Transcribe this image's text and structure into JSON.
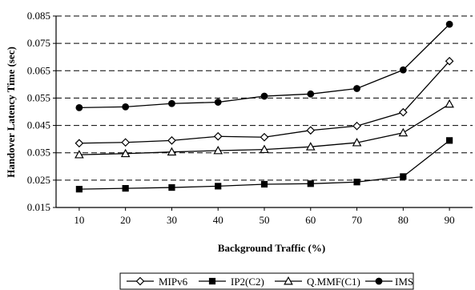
{
  "chart_data": {
    "type": "line",
    "xlabel": "Background Traffic (%)",
    "ylabel": "Handover Latency Time (sec)",
    "x": [
      10,
      20,
      30,
      40,
      50,
      60,
      70,
      80,
      90
    ],
    "xticks": [
      "10",
      "20",
      "30",
      "40",
      "50",
      "60",
      "70",
      "80",
      "90"
    ],
    "ylim": [
      0.015,
      0.085
    ],
    "yticks": [
      "0.015",
      "0.025",
      "0.035",
      "0.045",
      "0.055",
      "0.065",
      "0.075",
      "0.085"
    ],
    "grid": "horizontal dashed",
    "legend_placement": "bottom",
    "series": [
      {
        "name": "MIPv6",
        "marker": "diamond-open",
        "color": "#000000",
        "values": [
          0.0385,
          0.0388,
          0.0395,
          0.041,
          0.0407,
          0.0432,
          0.0448,
          0.0498,
          0.0685
        ]
      },
      {
        "name": "IP2(C2)",
        "marker": "square-filled",
        "color": "#000000",
        "values": [
          0.0217,
          0.022,
          0.0223,
          0.0228,
          0.0235,
          0.0237,
          0.0243,
          0.0263,
          0.0395
        ]
      },
      {
        "name": "Q.MMF(C1)",
        "marker": "triangle-open",
        "color": "#000000",
        "values": [
          0.0343,
          0.0347,
          0.0353,
          0.0358,
          0.0362,
          0.0372,
          0.0387,
          0.0423,
          0.0528
        ]
      },
      {
        "name": "IMS",
        "marker": "circle-filled",
        "color": "#000000",
        "values": [
          0.0515,
          0.0518,
          0.053,
          0.0535,
          0.0557,
          0.0565,
          0.0585,
          0.0653,
          0.082
        ]
      }
    ]
  }
}
